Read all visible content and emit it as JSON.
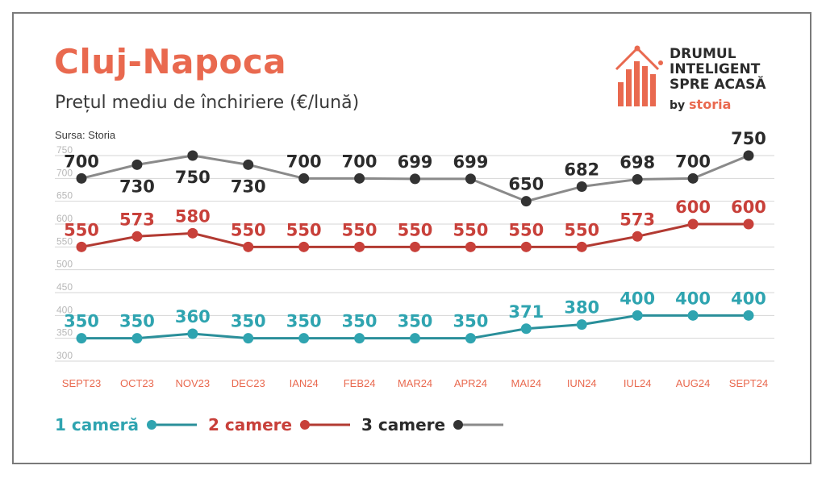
{
  "header": {
    "title": "Cluj-Napoca",
    "subtitle": "Prețul mediu de închiriere (€/lună)",
    "source": "Sursa: Storia"
  },
  "logo": {
    "line1": "DRUMUL",
    "line2": "INTELIGENT",
    "line3": "SPRE ACASĂ",
    "by": "by",
    "brand": "storia"
  },
  "colors": {
    "accent": "#e9694f",
    "one_room": "#2a8f9a",
    "one_room_label": "#2fa4b0",
    "two_rooms": "#b23a32",
    "two_rooms_label": "#c8403a",
    "three_rooms": "#8a8a8a",
    "three_rooms_marker": "#333333",
    "three_rooms_label": "#2b2b2b",
    "axis_label": "#e9694f",
    "tick_label": "#b8b8b8",
    "grid": "#d6d6d6"
  },
  "chart_data": {
    "type": "line",
    "categories": [
      "SEPT23",
      "OCT23",
      "NOV23",
      "DEC23",
      "IAN24",
      "FEB24",
      "MAR24",
      "APR24",
      "MAI24",
      "IUN24",
      "IUL24",
      "AUG24",
      "SEPT24"
    ],
    "ylim": [
      300,
      750
    ],
    "yticks": [
      300,
      350,
      400,
      450,
      500,
      550,
      600,
      650,
      700,
      750
    ],
    "grid": true,
    "legend_position": "bottom-left",
    "series": [
      {
        "name": "1 cameră",
        "values": [
          350,
          350,
          360,
          350,
          350,
          350,
          350,
          350,
          371,
          380,
          400,
          400,
          400
        ]
      },
      {
        "name": "2 camere",
        "values": [
          550,
          573,
          580,
          550,
          550,
          550,
          550,
          550,
          550,
          550,
          573,
          600,
          600
        ]
      },
      {
        "name": "3 camere",
        "values": [
          700,
          730,
          750,
          730,
          700,
          700,
          699,
          699,
          650,
          682,
          698,
          700,
          750
        ]
      }
    ]
  }
}
